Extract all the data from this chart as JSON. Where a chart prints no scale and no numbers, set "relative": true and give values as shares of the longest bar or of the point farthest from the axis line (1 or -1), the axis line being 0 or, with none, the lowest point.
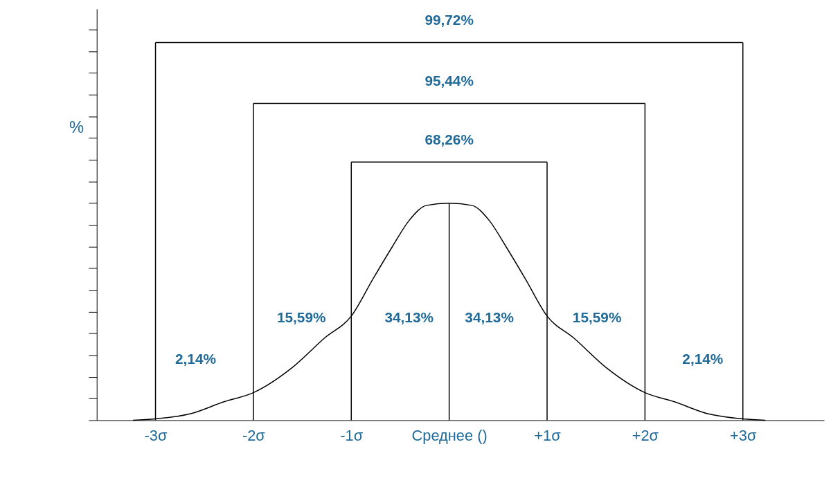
{
  "chart_data": {
    "type": "line",
    "relative": true,
    "ylabel": "%",
    "x": [
      -3.23,
      -3,
      -2.64,
      -2.3,
      -2,
      -1.61,
      -1.27,
      -1,
      -0.78,
      -0.58,
      -0.41,
      -0.23,
      0,
      0.23,
      0.41,
      0.58,
      0.78,
      1,
      1.27,
      1.61,
      2,
      2.3,
      2.64,
      3,
      3.23
    ],
    "series": [
      {
        "color": "#000000",
        "values": [
          0,
          0.006,
          0.03,
          0.085,
          0.127,
          0.24,
          0.38,
          0.48,
          0.65,
          0.8,
          0.92,
          0.99,
          1,
          0.99,
          0.92,
          0.8,
          0.65,
          0.48,
          0.38,
          0.24,
          0.127,
          0.085,
          0.03,
          0.006,
          0
        ]
      }
    ],
    "xlim": [
      -3.6,
      3.83
    ],
    "xticks": [
      {
        "value": -3,
        "label": "-3σ"
      },
      {
        "value": -2,
        "label": "-2σ"
      },
      {
        "value": -1,
        "label": "-1σ"
      },
      {
        "value": 0,
        "label": "Среднее ()"
      },
      {
        "value": 1,
        "label": "+1σ"
      },
      {
        "value": 2,
        "label": "+2σ"
      },
      {
        "value": 3,
        "label": "+3σ"
      }
    ],
    "ref_lines": [
      {
        "axis": "x",
        "value": -3,
        "color": "#000000"
      },
      {
        "axis": "x",
        "value": -2,
        "color": "#000000"
      },
      {
        "axis": "x",
        "value": -1,
        "color": "#000000"
      },
      {
        "axis": "x",
        "value": 0,
        "color": "#000000"
      },
      {
        "axis": "x",
        "value": 1,
        "color": "#000000"
      },
      {
        "axis": "x",
        "value": 2,
        "color": "#000000"
      },
      {
        "axis": "x",
        "value": 3,
        "color": "#000000"
      }
    ],
    "annotations": [
      "68,26%",
      "95,44%",
      "99,72%",
      "2,14%",
      "15,59%",
      "34,13%",
      "34,13%",
      "15,59%",
      "2,14%"
    ],
    "grid": false,
    "marker": "none",
    "line_style": "solid"
  }
}
